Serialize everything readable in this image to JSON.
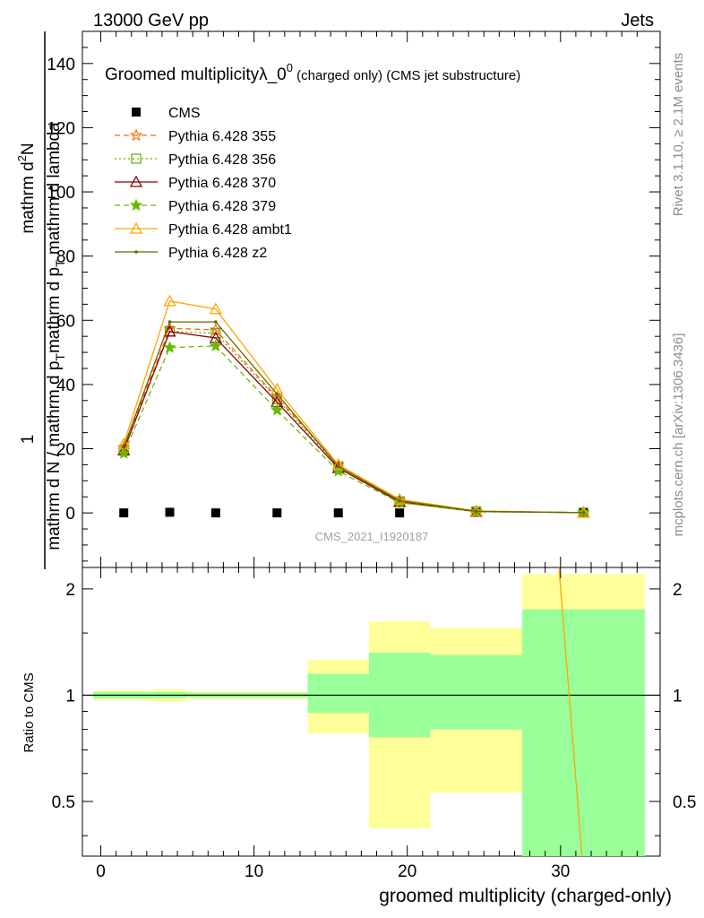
{
  "header": {
    "left": "13000 GeV pp",
    "right": "Jets"
  },
  "side_text": {
    "rivet": "Rivet 3.1.10, ≥ 2.1M events",
    "mcplots": "mcplots.cern.ch [arXiv:1306.3436]"
  },
  "chart_data": [
    {
      "type": "line",
      "title_main": "Groomed multiplicityλ_0",
      "title_sup": "0",
      "title_rest": " (charged only) (CMS jet substructure)",
      "ylabel_top": "1",
      "ylabel_num": "mathrm d^{2}N",
      "ylabel_num_parts": [
        "mathrm d",
        "2",
        "N"
      ],
      "ylabel_den": "mathrm d N / mathrm d p_T mathrm d p_T mathrm d lambda",
      "ylabel_den_text": "mathrm d N / mathrm d p",
      "ylabel_den_sub1": "T",
      "ylabel_den_mid": "mathrm d p",
      "ylabel_den_sub2": "T",
      "ylabel_den_end": " mathrm d lambda",
      "watermark": "CMS_2021_I1920187",
      "xlim": [
        -1.2,
        36.5
      ],
      "ylim": [
        -17,
        150
      ],
      "yticks": [
        0,
        20,
        40,
        60,
        80,
        100,
        120,
        140
      ],
      "x": [
        1.5,
        4.5,
        7.5,
        11.5,
        15.5,
        19.5,
        24.5,
        31.5
      ],
      "series": [
        {
          "name": "CMS",
          "color": "#000000",
          "marker": "square",
          "values": [
            0,
            0.2,
            0,
            0,
            0,
            0,
            0.2,
            0
          ]
        },
        {
          "name": "Pythia 6.428 355",
          "color": "#ff6600",
          "marker": "star-open",
          "dash": "6,4",
          "values": [
            20.5,
            57.5,
            57.0,
            36.0,
            15.0,
            4.0,
            0.5,
            0.1
          ]
        },
        {
          "name": "Pythia 6.428 356",
          "color": "#66aa00",
          "marker": "square-open",
          "dash": "2,3",
          "values": [
            19.5,
            56.5,
            56.0,
            35.5,
            14.5,
            3.6,
            0.5,
            0.1
          ]
        },
        {
          "name": "Pythia 6.428 370",
          "color": "#8b0000",
          "marker": "triangle-open",
          "dash": "",
          "values": [
            19.5,
            56.5,
            54.5,
            34.5,
            14.0,
            3.4,
            0.4,
            0.1
          ]
        },
        {
          "name": "Pythia 6.428 379",
          "color": "#66bb00",
          "marker": "star",
          "dash": "6,4",
          "values": [
            18.5,
            51.5,
            52.0,
            32.0,
            13.0,
            3.2,
            0.4,
            0.1
          ]
        },
        {
          "name": "Pythia 6.428 ambt1",
          "color": "#ffa500",
          "marker": "triangle-open",
          "dash": "",
          "values": [
            21.5,
            66.0,
            63.5,
            38.5,
            15.0,
            4.2,
            0.6,
            0.1
          ]
        },
        {
          "name": "Pythia 6.428 z2",
          "color": "#666600",
          "marker": "dot",
          "dash": "",
          "values": [
            20.5,
            59.5,
            59.5,
            37.0,
            14.5,
            3.8,
            0.5,
            0.1
          ]
        }
      ]
    },
    {
      "type": "area",
      "xlabel": "groomed multiplicity (charged-only)",
      "ylabel": "Ratio to CMS",
      "scale": "log",
      "ylim": [
        0.35,
        2.3
      ],
      "yticks": [
        0.5,
        1,
        2
      ],
      "ytick_labels": [
        "0.5",
        "1",
        "2"
      ],
      "xticks": [
        0,
        10,
        20,
        30
      ],
      "xtick_labels": [
        "0",
        "10",
        "20",
        "30"
      ],
      "bins": [
        {
          "x0": -0.5,
          "x1": 3.5,
          "green": [
            0.98,
            1.02
          ],
          "yellow": [
            0.97,
            1.03
          ]
        },
        {
          "x0": 3.5,
          "x1": 5.5,
          "green": [
            0.98,
            1.02
          ],
          "yellow": [
            0.96,
            1.04
          ]
        },
        {
          "x0": 5.5,
          "x1": 9.5,
          "green": [
            0.985,
            1.015
          ],
          "yellow": [
            0.975,
            1.025
          ]
        },
        {
          "x0": 9.5,
          "x1": 13.5,
          "green": [
            0.985,
            1.015
          ],
          "yellow": [
            0.975,
            1.025
          ]
        },
        {
          "x0": 13.5,
          "x1": 17.5,
          "green": [
            0.89,
            1.15
          ],
          "yellow": [
            0.78,
            1.26
          ]
        },
        {
          "x0": 17.5,
          "x1": 21.5,
          "green": [
            0.76,
            1.32
          ],
          "yellow": [
            0.42,
            1.62
          ]
        },
        {
          "x0": 21.5,
          "x1": 27.5,
          "green": [
            0.8,
            1.3
          ],
          "yellow": [
            0.53,
            1.55
          ]
        },
        {
          "x0": 27.5,
          "x1": 35.5,
          "green": [
            0.35,
            1.75
          ],
          "yellow": [
            0.35,
            2.2
          ]
        }
      ],
      "green_color": "#99ff99",
      "yellow_color": "#ffff99",
      "ambt1_line": {
        "color": "#ffa500",
        "x": [
          29.9,
          31.4
        ],
        "values": [
          2.3,
          0.35
        ]
      }
    }
  ]
}
